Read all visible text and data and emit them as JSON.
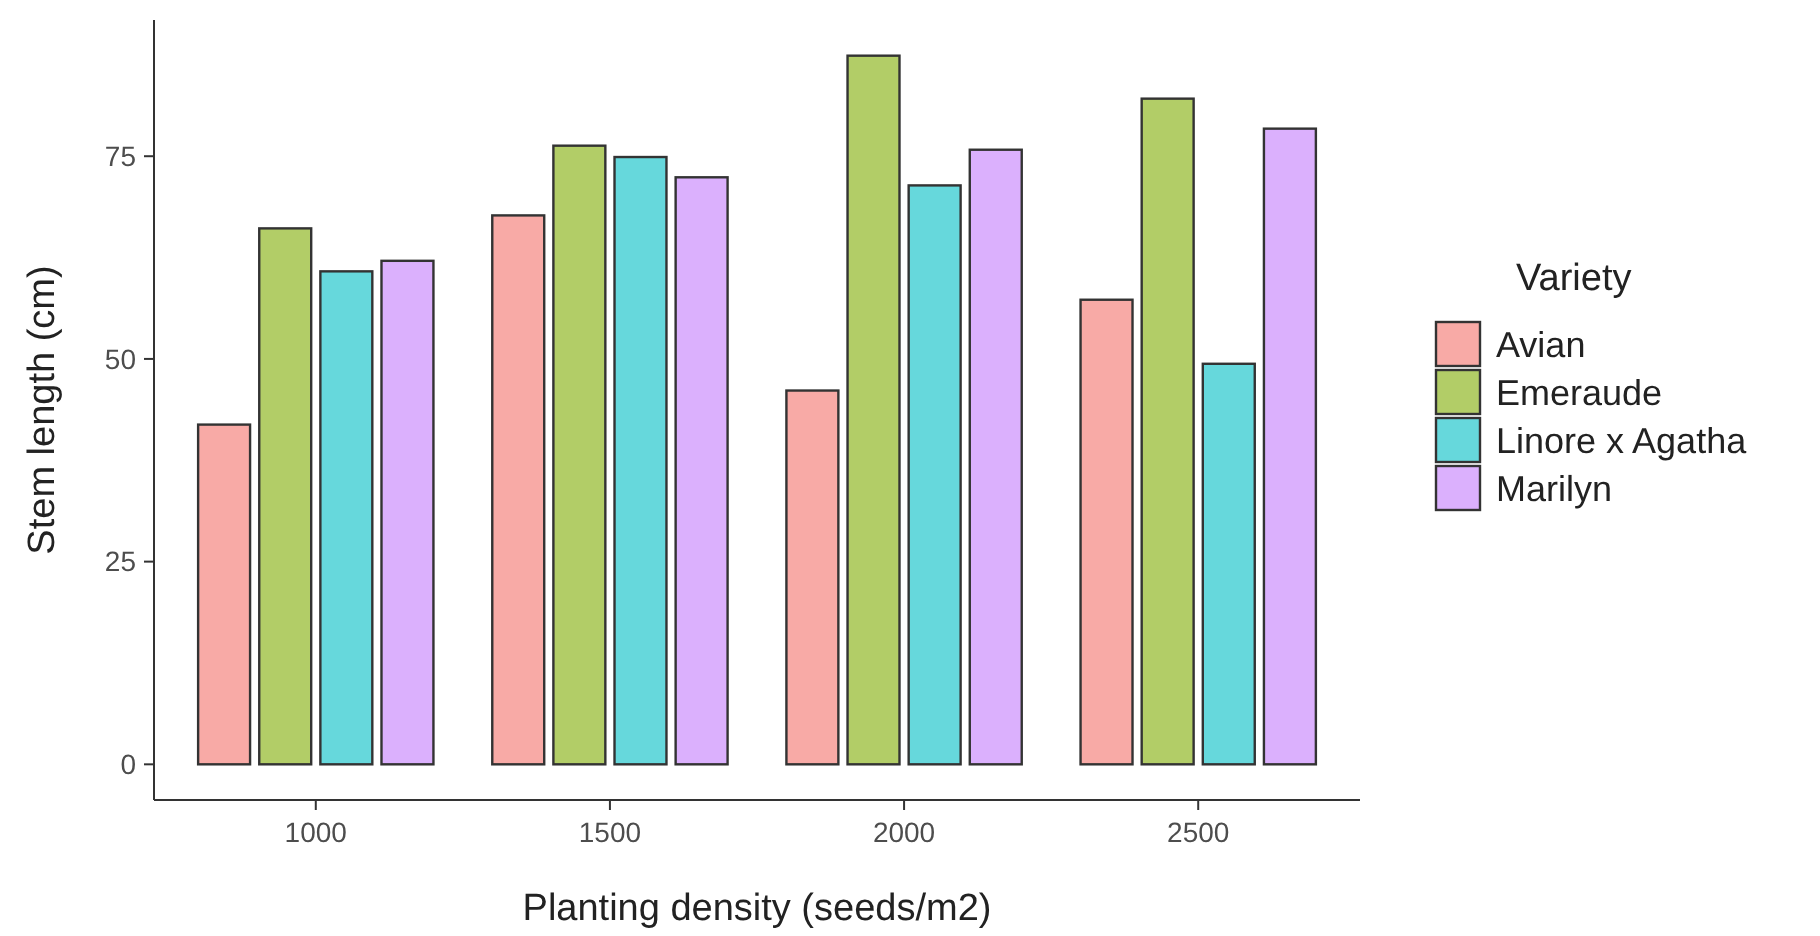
{
  "chart_data": {
    "type": "bar",
    "xlabel": "Planting density (seeds/m2)",
    "ylabel": "Stem length (cm)",
    "legend_title": "Variety",
    "legend": "right",
    "categories": [
      "1000",
      "1500",
      "2000",
      "2500"
    ],
    "series": [
      {
        "name": "Avian",
        "color": "#f8aaa6",
        "values": [
          41.9,
          67.7,
          46.1,
          57.3
        ]
      },
      {
        "name": "Emeraude",
        "color": "#b2cd67",
        "values": [
          66.1,
          76.3,
          87.4,
          82.1
        ]
      },
      {
        "name": "Linore x Agatha",
        "color": "#66d8dc",
        "values": [
          60.8,
          74.9,
          71.4,
          49.4
        ]
      },
      {
        "name": "Marilyn",
        "color": "#dbb0fd",
        "values": [
          62.1,
          72.4,
          75.8,
          78.4
        ]
      }
    ],
    "ylim": [
      -4.4,
      91.8
    ],
    "yticks": [
      0,
      25,
      50,
      75
    ],
    "grid": false
  }
}
